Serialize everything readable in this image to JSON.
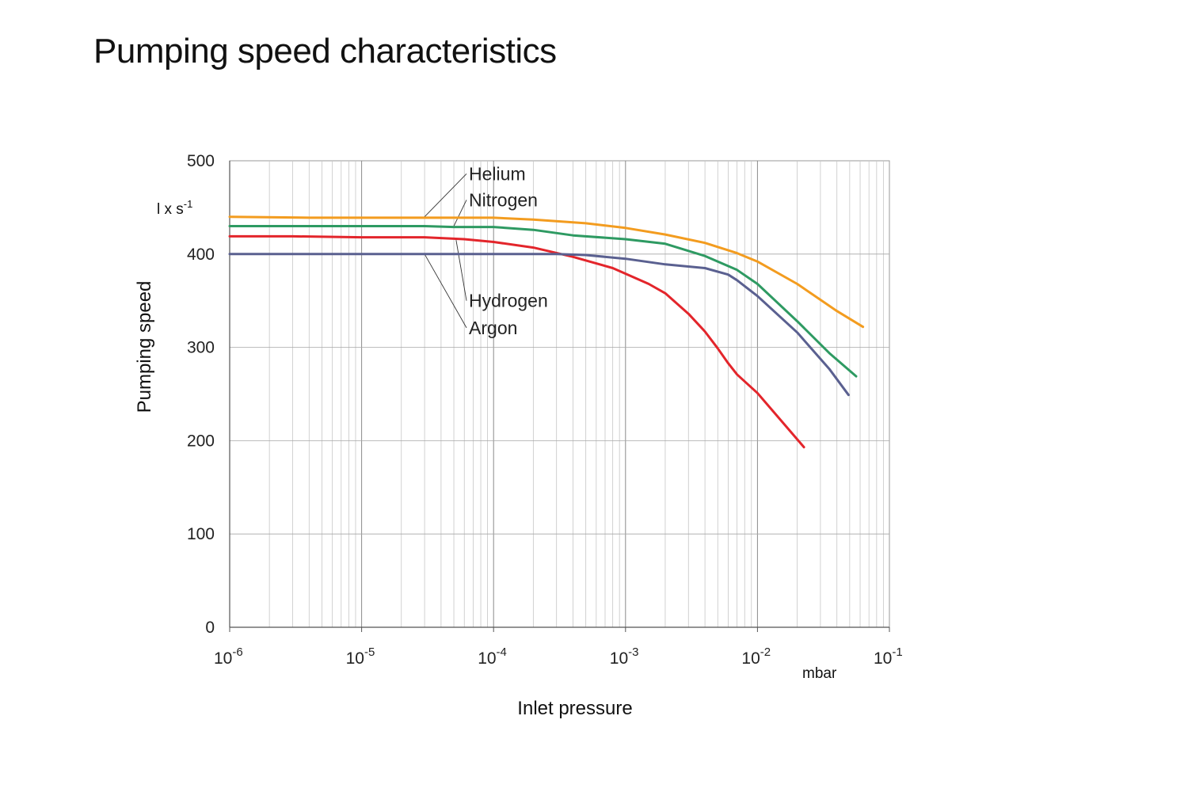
{
  "title": "Pumping speed characteristics",
  "chart_data": {
    "type": "line",
    "title": "Pumping speed characteristics",
    "xlabel": "Inlet pressure",
    "ylabel": "Pumping speed",
    "x_unit": "mbar",
    "y_unit": "l x s",
    "y_unit_exponent": "-1",
    "x_scale": "log",
    "xlim": [
      1e-06,
      0.1
    ],
    "ylim": [
      0,
      500
    ],
    "grid": true,
    "x_ticks": [
      {
        "base": "10",
        "exp": "-6",
        "value": 1e-06
      },
      {
        "base": "10",
        "exp": "-5",
        "value": 1e-05
      },
      {
        "base": "10",
        "exp": "-4",
        "value": 0.0001
      },
      {
        "base": "10",
        "exp": "-3",
        "value": 0.001
      },
      {
        "base": "10",
        "exp": "-2",
        "value": 0.01
      },
      {
        "base": "10",
        "exp": "-1",
        "value": 0.1
      }
    ],
    "y_ticks": [
      "0",
      "100",
      "200",
      "300",
      "400",
      "500"
    ],
    "series": [
      {
        "name": "Helium",
        "color": "#f39c1f",
        "x": [
          1e-06,
          4e-06,
          1e-05,
          3e-05,
          0.0001,
          0.0002,
          0.0005,
          0.001,
          0.002,
          0.004,
          0.007,
          0.01,
          0.02,
          0.04,
          0.063
        ],
        "y": [
          440,
          439,
          439,
          439,
          439,
          437,
          433,
          428,
          421,
          412,
          401,
          392,
          368,
          339,
          322
        ],
        "label_anchor": {
          "x": 3e-05,
          "y": 440
        }
      },
      {
        "name": "Nitrogen",
        "color": "#2e9a62",
        "x": [
          1e-06,
          3e-06,
          1e-05,
          3e-05,
          5e-05,
          0.0001,
          0.0002,
          0.0004,
          0.001,
          0.002,
          0.004,
          0.007,
          0.01,
          0.02,
          0.035,
          0.056
        ],
        "y": [
          430,
          430,
          430,
          430,
          429,
          429,
          426,
          420,
          416,
          411,
          398,
          383,
          368,
          328,
          294,
          269
        ],
        "label_anchor": {
          "x": 5e-05,
          "y": 430
        }
      },
      {
        "name": "Hydrogen",
        "color": "#e3252b",
        "x": [
          1e-06,
          3e-06,
          1e-05,
          3e-05,
          6e-05,
          0.0001,
          0.0002,
          0.0004,
          0.0008,
          0.0015,
          0.002,
          0.003,
          0.004,
          0.005,
          0.006,
          0.007,
          0.01,
          0.0225
        ],
        "y": [
          419,
          419,
          418,
          418,
          416,
          413,
          407,
          397,
          385,
          368,
          358,
          336,
          317,
          299,
          283,
          271,
          251,
          193
        ],
        "label_anchor": {
          "x": 5.2e-05,
          "y": 415
        }
      },
      {
        "name": "Argon",
        "color": "#5a6090",
        "x": [
          1e-06,
          3e-06,
          1e-05,
          3e-05,
          0.0001,
          0.0002,
          0.0003,
          0.0005,
          0.001,
          0.002,
          0.004,
          0.006,
          0.007,
          0.01,
          0.02,
          0.035,
          0.049
        ],
        "y": [
          400,
          400,
          400,
          400,
          400,
          400,
          400,
          399,
          395,
          389,
          385,
          378,
          372,
          355,
          316,
          277,
          249
        ],
        "label_anchor": {
          "x": 3e-05,
          "y": 400
        }
      }
    ],
    "label_positions": {
      "Helium": {
        "x": 6.5e-05,
        "y": 486
      },
      "Nitrogen": {
        "x": 6.5e-05,
        "y": 458
      },
      "Hydrogen": {
        "x": 6.5e-05,
        "y": 350
      },
      "Argon": {
        "x": 6.5e-05,
        "y": 321
      }
    }
  }
}
